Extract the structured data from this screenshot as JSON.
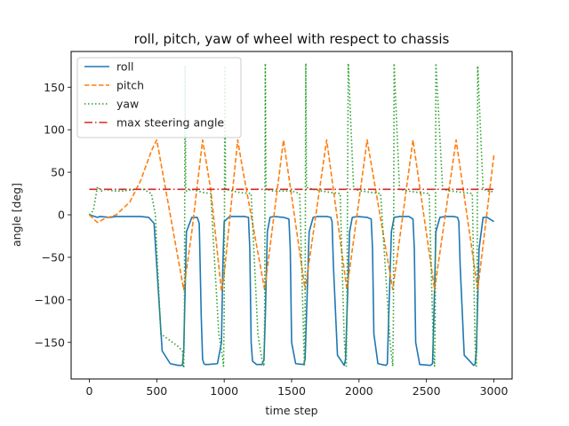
{
  "chart_data": {
    "type": "line",
    "title": "roll, pitch, yaw of wheel with respect to chassis",
    "xlabel": "time step",
    "ylabel": "angle [deg]",
    "xlim": [
      -135,
      3135
    ],
    "ylim": [
      -193,
      192
    ],
    "xticks": [
      0,
      500,
      1000,
      1500,
      2000,
      2500,
      3000
    ],
    "yticks": [
      -150,
      -100,
      -50,
      0,
      50,
      100,
      150
    ],
    "xtick_labels": [
      "0",
      "500",
      "1000",
      "1500",
      "2000",
      "2500",
      "3000"
    ],
    "ytick_labels": [
      "−150",
      "−100",
      "−50",
      "0",
      "50",
      "100",
      "150"
    ],
    "grid": false,
    "legend_position": "top-left",
    "series": [
      {
        "name": "roll",
        "color": "#1f77b4",
        "style": "solid",
        "x": [
          0,
          60,
          80,
          150,
          200,
          280,
          380,
          440,
          480,
          500,
          540,
          600,
          660,
          690,
          700,
          720,
          760,
          800,
          815,
          830,
          840,
          850,
          860,
          880,
          950,
          980,
          990,
          1000,
          1040,
          1100,
          1150,
          1180,
          1190,
          1200,
          1210,
          1240,
          1280,
          1295,
          1305,
          1320,
          1340,
          1370,
          1440,
          1480,
          1490,
          1500,
          1530,
          1590,
          1600,
          1610,
          1630,
          1660,
          1690,
          1760,
          1790,
          1800,
          1810,
          1840,
          1890,
          1900,
          1910,
          1930,
          1950,
          1990,
          2060,
          2090,
          2100,
          2110,
          2140,
          2200,
          2210,
          2220,
          2240,
          2260,
          2300,
          2370,
          2400,
          2410,
          2420,
          2450,
          2530,
          2545,
          2555,
          2570,
          2600,
          2640,
          2700,
          2730,
          2740,
          2750,
          2780,
          2850,
          2860,
          2870,
          2890,
          2920,
          2950,
          3000
        ],
        "y": [
          0,
          -3,
          -2,
          -3,
          -2,
          -2,
          -2,
          -3,
          -10,
          -60,
          -160,
          -175,
          -177,
          -177,
          -160,
          -20,
          -3,
          -3,
          -10,
          -120,
          -170,
          -175,
          -176,
          -176,
          -175,
          -150,
          -60,
          -8,
          -2,
          -2,
          -2,
          -3,
          -40,
          -150,
          -172,
          -176,
          -176,
          -170,
          -120,
          -20,
          -3,
          -2,
          -3,
          -5,
          -40,
          -150,
          -175,
          -176,
          -170,
          -120,
          -20,
          -3,
          -2,
          -2,
          -3,
          -8,
          -60,
          -165,
          -177,
          -170,
          -120,
          -20,
          -3,
          -2,
          -3,
          -5,
          -40,
          -140,
          -175,
          -177,
          -175,
          -120,
          -20,
          -3,
          -2,
          -2,
          -5,
          -40,
          -150,
          -176,
          -177,
          -175,
          -120,
          -20,
          -3,
          -2,
          -2,
          -3,
          -8,
          -60,
          -165,
          -177,
          -176,
          -160,
          -40,
          -3,
          -3,
          -8
        ]
      },
      {
        "name": "pitch",
        "color": "#ff7f0e",
        "style": "dashed",
        "x": [
          0,
          60,
          120,
          200,
          300,
          380,
          460,
          500,
          600,
          700,
          760,
          840,
          900,
          980,
          1000,
          1100,
          1130,
          1300,
          1440,
          1600,
          1760,
          1910,
          2060,
          2250,
          2400,
          2560,
          2720,
          2880,
          3000
        ],
        "y": [
          0,
          -9,
          -4,
          0,
          15,
          40,
          75,
          88,
          0,
          -88,
          -20,
          88,
          30,
          -90,
          -70,
          88,
          60,
          -88,
          88,
          -88,
          88,
          -88,
          88,
          -88,
          88,
          -88,
          88,
          -88,
          70
        ]
      },
      {
        "name": "yaw",
        "color": "#2ca02c",
        "style": "dotted",
        "x": [
          0,
          30,
          60,
          90,
          120,
          180,
          250,
          300,
          350,
          400,
          460,
          490,
          500,
          530,
          600,
          660,
          690,
          700,
          705,
          710,
          715,
          720,
          760,
          800,
          850,
          900,
          960,
          990,
          995,
          1000,
          1005,
          1010,
          1060,
          1120,
          1200,
          1250,
          1280,
          1295,
          1300,
          1305,
          1310,
          1360,
          1420,
          1500,
          1560,
          1590,
          1595,
          1600,
          1605,
          1610,
          1660,
          1720,
          1800,
          1860,
          1890,
          1900,
          1905,
          1910,
          1920,
          1960,
          2020,
          2100,
          2160,
          2230,
          2245,
          2250,
          2255,
          2260,
          2300,
          2360,
          2450,
          2520,
          2550,
          2555,
          2560,
          2565,
          2570,
          2620,
          2680,
          2780,
          2840,
          2860,
          2865,
          2870,
          2875,
          2880,
          2920,
          2960,
          3000
        ],
        "y": [
          0,
          5,
          33,
          28,
          30,
          28,
          28,
          29,
          30,
          30,
          25,
          0,
          -40,
          -140,
          -148,
          -155,
          -160,
          -180,
          -120,
          175,
          30,
          28,
          30,
          28,
          26,
          25,
          -140,
          -170,
          -178,
          -120,
          175,
          30,
          28,
          26,
          25,
          -140,
          -170,
          -178,
          -120,
          178,
          30,
          28,
          28,
          28,
          25,
          -150,
          -178,
          -120,
          178,
          32,
          30,
          28,
          26,
          25,
          -145,
          -170,
          -178,
          -120,
          178,
          30,
          28,
          26,
          25,
          -150,
          -170,
          -178,
          -120,
          178,
          30,
          28,
          26,
          25,
          -150,
          -170,
          -178,
          -120,
          178,
          30,
          28,
          26,
          25,
          -150,
          -170,
          -178,
          -120,
          175,
          30,
          28,
          27
        ]
      },
      {
        "name": "max steering angle",
        "color": "#d62728",
        "style": "dashdot",
        "x": [
          0,
          3000
        ],
        "y": [
          30,
          30
        ]
      }
    ]
  }
}
